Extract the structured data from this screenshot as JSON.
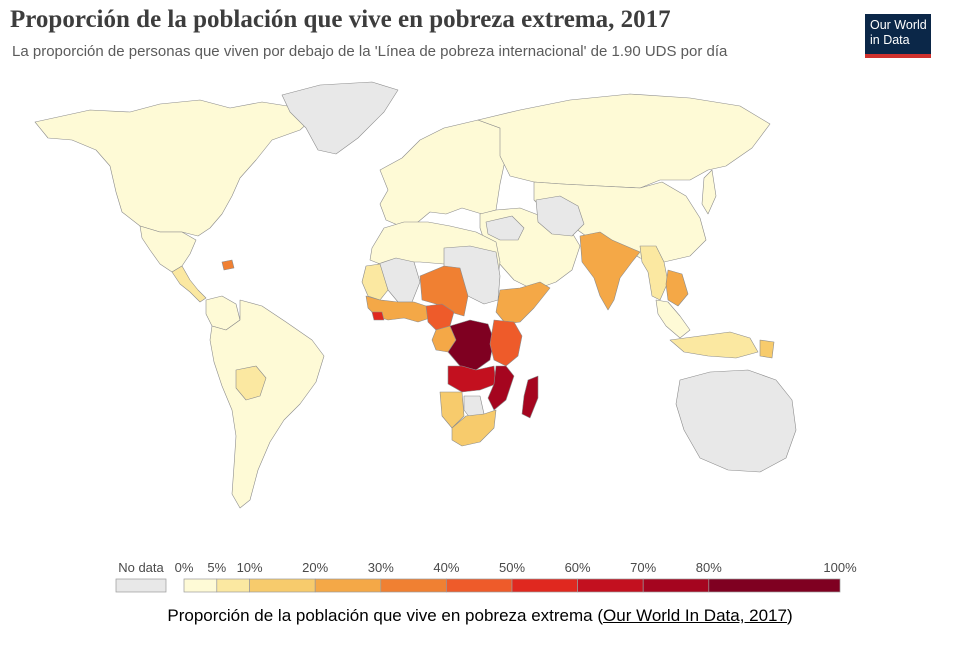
{
  "header": {
    "title": "Proporción de la población que vive en pobreza extrema, 2017",
    "subtitle": "La proporción de personas que viven por debajo de la 'Línea de pobreza internacional' de 1.90 UDS por día"
  },
  "logo": {
    "line1": "Our World",
    "line2": "in Data"
  },
  "legend": {
    "no_data_label": "No data",
    "ticks": [
      "0%",
      "5%",
      "10%",
      "20%",
      "30%",
      "40%",
      "50%",
      "60%",
      "70%",
      "80%",
      "100%"
    ],
    "colors": [
      "#fefad6",
      "#fbe8a1",
      "#f7cb6c",
      "#f4a847",
      "#f08032",
      "#ee5b2a",
      "#e0281f",
      "#c3101f",
      "#a5051f",
      "#7f0021"
    ],
    "no_data_color": "#e8e8e8"
  },
  "map": {
    "regions": [
      {
        "name": "north-america",
        "band": 0
      },
      {
        "name": "greenland",
        "band": "none"
      },
      {
        "name": "mexico",
        "band": 0
      },
      {
        "name": "central-america",
        "band": 1
      },
      {
        "name": "haiti",
        "band": 4
      },
      {
        "name": "south-america",
        "band": 0
      },
      {
        "name": "bolivia",
        "band": 1
      },
      {
        "name": "colombia",
        "band": 0
      },
      {
        "name": "europe",
        "band": 0
      },
      {
        "name": "russia",
        "band": 0
      },
      {
        "name": "middle-east",
        "band": 0
      },
      {
        "name": "syria-iraq",
        "band": "none"
      },
      {
        "name": "north-africa",
        "band": 0
      },
      {
        "name": "libya-sudan",
        "band": "none"
      },
      {
        "name": "western-sahara-mali",
        "band": "none"
      },
      {
        "name": "mauritania",
        "band": 1
      },
      {
        "name": "west-africa-coast",
        "band": 3
      },
      {
        "name": "liberia",
        "band": 6
      },
      {
        "name": "niger-chad",
        "band": 4
      },
      {
        "name": "nigeria",
        "band": 5
      },
      {
        "name": "ethiopia-somalia",
        "band": 3
      },
      {
        "name": "kenya-tanzania",
        "band": 5
      },
      {
        "name": "cameroon-gabon",
        "band": 3
      },
      {
        "name": "dr-congo",
        "band": 9
      },
      {
        "name": "angola-zambia",
        "band": 7
      },
      {
        "name": "mozambique-malawi",
        "band": 8
      },
      {
        "name": "madagascar",
        "band": 8
      },
      {
        "name": "namibia",
        "band": 2
      },
      {
        "name": "botswana",
        "band": "none"
      },
      {
        "name": "south-africa",
        "band": 2
      },
      {
        "name": "central-asia",
        "band": 0
      },
      {
        "name": "china",
        "band": "none"
      },
      {
        "name": "india",
        "band": 3
      },
      {
        "name": "myanmar-laos",
        "band": 1
      },
      {
        "name": "vietnam-cambodia",
        "band": 3
      },
      {
        "name": "southeast-asia",
        "band": 0
      },
      {
        "name": "indonesia",
        "band": 1
      },
      {
        "name": "papua-new-guinea",
        "band": 2
      },
      {
        "name": "japan",
        "band": 0
      },
      {
        "name": "australia",
        "band": "none"
      }
    ]
  },
  "footer": {
    "caption": "Proporción de la población que vive en pobreza extrema (",
    "link_text": "Our World In Data, 2017",
    "caption_end": ")"
  }
}
